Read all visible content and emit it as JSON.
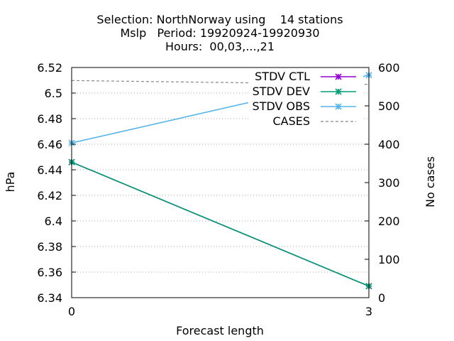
{
  "chart_data": {
    "type": "line",
    "title_lines": [
      "Selection: NorthNorway using    14 stations",
      "Mslp   Period: 19920924-19920930",
      "Hours:  00,03,...,21"
    ],
    "xlabel": "Forecast length",
    "ylabel": "hPa",
    "y2label": "No cases",
    "x": [
      0,
      3
    ],
    "xticks": [
      "0",
      "3"
    ],
    "xlim": [
      0,
      3
    ],
    "ylim": [
      6.34,
      6.52
    ],
    "yticks": [
      "6.34",
      "6.36",
      "6.38",
      "6.4",
      "6.42",
      "6.44",
      "6.46",
      "6.48",
      "6.5",
      "6.52"
    ],
    "y2lim": [
      0,
      600
    ],
    "y2ticks": [
      "0",
      "100",
      "200",
      "300",
      "400",
      "500",
      "600"
    ],
    "grid": true,
    "legend_position": "top-right",
    "series": [
      {
        "name": "STDV CTL",
        "axis": "y1",
        "values": [
          6.446,
          6.349
        ],
        "color": "#9400d3",
        "marker": "star"
      },
      {
        "name": "STDV DEV",
        "axis": "y1",
        "values": [
          6.446,
          6.349
        ],
        "color": "#009e73",
        "marker": "star"
      },
      {
        "name": "STDV OBS",
        "axis": "y1",
        "values": [
          6.461,
          6.514
        ],
        "color": "#56b4e9",
        "marker": "star"
      },
      {
        "name": "CASES",
        "axis": "y2",
        "values": [
          566,
          556
        ],
        "color": "#888888",
        "dashed": true
      }
    ]
  }
}
